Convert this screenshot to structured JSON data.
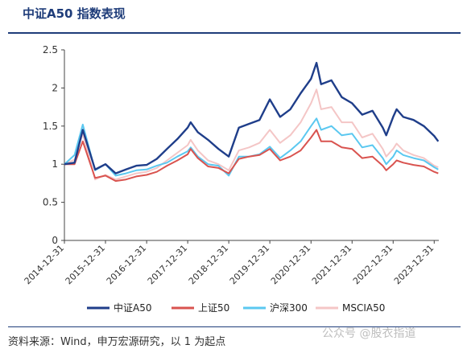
{
  "title": "中证A50 指数表现",
  "source": "资料来源：Wind，申万宏源研究，以 1 为起点",
  "watermark": "公众号 @股衣指道",
  "colors": {
    "title": "#1f3d7a",
    "A50": "#1f3e8a",
    "SH50": "#d9534f",
    "HS300": "#5bc8f0",
    "MSCIA50": "#f4c6c6"
  },
  "chart_data": {
    "type": "line",
    "xlabel": "",
    "ylabel": "",
    "ylim": [
      0,
      2.5
    ],
    "y_ticks": [
      "0",
      "0.5",
      "1",
      "1.5",
      "2",
      "2.5"
    ],
    "x_ticks": [
      "2014-12-31",
      "2015-12-31",
      "2016-12-31",
      "2017-12-31",
      "2018-12-31",
      "2019-12-31",
      "2020-12-31",
      "2021-12-31",
      "2022-12-31",
      "2023-12-31"
    ],
    "legend_position": "bottom",
    "series": [
      {
        "name": "中证A50",
        "color": "#1f3e8a",
        "x": [
          "2014-12-31",
          "2015-03-31",
          "2015-06-12",
          "2015-09-30",
          "2015-12-31",
          "2016-03-31",
          "2016-06-30",
          "2016-09-30",
          "2016-12-31",
          "2017-03-31",
          "2017-06-30",
          "2017-09-30",
          "2017-12-31",
          "2018-01-26",
          "2018-03-31",
          "2018-06-30",
          "2018-09-30",
          "2018-12-31",
          "2019-03-31",
          "2019-06-30",
          "2019-09-30",
          "2019-12-31",
          "2020-03-31",
          "2020-06-30",
          "2020-09-30",
          "2020-12-31",
          "2021-02-18",
          "2021-03-31",
          "2021-06-30",
          "2021-09-30",
          "2021-12-31",
          "2022-03-31",
          "2022-06-30",
          "2022-09-30",
          "2022-10-31",
          "2022-12-31",
          "2023-01-31",
          "2023-03-31",
          "2023-06-30",
          "2023-09-30",
          "2023-12-31",
          "2024-02-05"
        ],
        "y": [
          1.0,
          1.02,
          1.45,
          0.93,
          1.0,
          0.88,
          0.93,
          0.98,
          0.99,
          1.07,
          1.2,
          1.33,
          1.48,
          1.55,
          1.42,
          1.32,
          1.2,
          1.1,
          1.48,
          1.53,
          1.58,
          1.85,
          1.62,
          1.72,
          1.93,
          2.12,
          2.33,
          2.05,
          2.1,
          1.88,
          1.8,
          1.65,
          1.7,
          1.48,
          1.38,
          1.62,
          1.72,
          1.62,
          1.58,
          1.5,
          1.37,
          1.3
        ]
      },
      {
        "name": "上证50",
        "color": "#d9534f",
        "x": [
          "2014-12-31",
          "2015-03-31",
          "2015-06-12",
          "2015-09-30",
          "2015-12-31",
          "2016-03-31",
          "2016-06-30",
          "2016-09-30",
          "2016-12-31",
          "2017-03-31",
          "2017-06-30",
          "2017-09-30",
          "2017-12-31",
          "2018-01-26",
          "2018-03-31",
          "2018-06-30",
          "2018-09-30",
          "2018-12-31",
          "2019-03-31",
          "2019-06-30",
          "2019-09-30",
          "2019-12-31",
          "2020-03-31",
          "2020-06-30",
          "2020-09-30",
          "2020-12-31",
          "2021-02-18",
          "2021-03-31",
          "2021-06-30",
          "2021-09-30",
          "2021-12-31",
          "2022-03-31",
          "2022-06-30",
          "2022-09-30",
          "2022-10-31",
          "2022-12-31",
          "2023-01-31",
          "2023-03-31",
          "2023-06-30",
          "2023-09-30",
          "2023-12-31",
          "2024-02-05"
        ],
        "y": [
          1.0,
          1.0,
          1.3,
          0.82,
          0.85,
          0.78,
          0.8,
          0.84,
          0.86,
          0.9,
          0.98,
          1.05,
          1.13,
          1.2,
          1.08,
          0.97,
          0.95,
          0.88,
          1.07,
          1.1,
          1.12,
          1.2,
          1.05,
          1.1,
          1.18,
          1.35,
          1.45,
          1.3,
          1.3,
          1.22,
          1.2,
          1.08,
          1.1,
          0.98,
          0.92,
          1.0,
          1.05,
          1.02,
          0.99,
          0.97,
          0.9,
          0.88
        ]
      },
      {
        "name": "沪深300",
        "color": "#5bc8f0",
        "x": [
          "2014-12-31",
          "2015-03-31",
          "2015-06-12",
          "2015-09-30",
          "2015-12-31",
          "2016-03-31",
          "2016-06-30",
          "2016-09-30",
          "2016-12-31",
          "2017-03-31",
          "2017-06-30",
          "2017-09-30",
          "2017-12-31",
          "2018-01-26",
          "2018-03-31",
          "2018-06-30",
          "2018-09-30",
          "2018-12-31",
          "2019-03-31",
          "2019-06-30",
          "2019-09-30",
          "2019-12-31",
          "2020-03-31",
          "2020-06-30",
          "2020-09-30",
          "2020-12-31",
          "2021-02-18",
          "2021-03-31",
          "2021-06-30",
          "2021-09-30",
          "2021-12-31",
          "2022-03-31",
          "2022-06-30",
          "2022-09-30",
          "2022-10-31",
          "2022-12-31",
          "2023-01-31",
          "2023-03-31",
          "2023-06-30",
          "2023-09-30",
          "2023-12-31",
          "2024-02-05"
        ],
        "y": [
          1.0,
          1.12,
          1.52,
          0.92,
          1.0,
          0.85,
          0.88,
          0.92,
          0.93,
          0.98,
          1.02,
          1.1,
          1.17,
          1.22,
          1.1,
          1.0,
          0.98,
          0.85,
          1.1,
          1.1,
          1.13,
          1.23,
          1.08,
          1.18,
          1.3,
          1.5,
          1.6,
          1.45,
          1.5,
          1.38,
          1.4,
          1.22,
          1.25,
          1.08,
          1.0,
          1.1,
          1.18,
          1.12,
          1.08,
          1.05,
          0.96,
          0.93
        ]
      },
      {
        "name": "MSCIA50",
        "color": "#f4c6c6",
        "x": [
          "2014-12-31",
          "2015-03-31",
          "2015-06-12",
          "2015-09-30",
          "2015-12-31",
          "2016-03-31",
          "2016-06-30",
          "2016-09-30",
          "2016-12-31",
          "2017-03-31",
          "2017-06-30",
          "2017-09-30",
          "2017-12-31",
          "2018-01-26",
          "2018-03-31",
          "2018-06-30",
          "2018-09-30",
          "2018-12-31",
          "2019-03-31",
          "2019-06-30",
          "2019-09-30",
          "2019-12-31",
          "2020-03-31",
          "2020-06-30",
          "2020-09-30",
          "2020-12-31",
          "2021-02-18",
          "2021-03-31",
          "2021-06-30",
          "2021-09-30",
          "2021-12-31",
          "2022-03-31",
          "2022-06-30",
          "2022-09-30",
          "2022-10-31",
          "2022-12-31",
          "2023-01-31",
          "2023-03-31",
          "2023-06-30",
          "2023-09-30",
          "2023-12-31",
          "2024-02-05"
        ],
        "y": [
          1.0,
          1.06,
          1.4,
          0.8,
          0.86,
          0.8,
          0.84,
          0.88,
          0.9,
          0.95,
          1.05,
          1.15,
          1.25,
          1.32,
          1.18,
          1.05,
          1.0,
          0.92,
          1.18,
          1.22,
          1.28,
          1.45,
          1.28,
          1.38,
          1.55,
          1.8,
          1.98,
          1.72,
          1.75,
          1.55,
          1.55,
          1.35,
          1.4,
          1.2,
          1.1,
          1.2,
          1.27,
          1.18,
          1.12,
          1.08,
          0.98,
          0.96
        ]
      }
    ]
  }
}
